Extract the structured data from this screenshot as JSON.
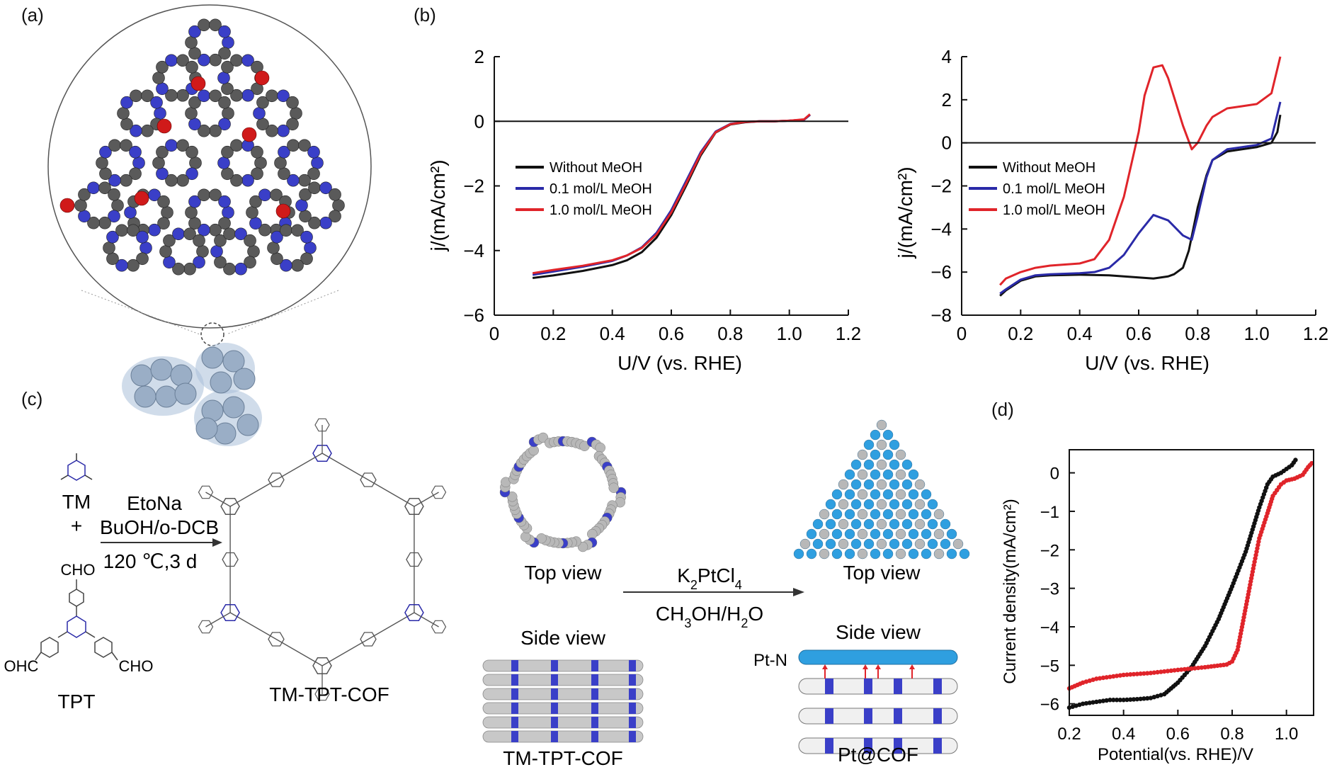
{
  "labels": {
    "a": "(a)",
    "b": "(b)",
    "c": "(c)",
    "d": "(d)"
  },
  "colors": {
    "black": "#111111",
    "blue": "#2a2aa8",
    "red": "#e0242a",
    "atom_grey": "#5a5a5a",
    "atom_blue": "#3a3fc8",
    "atom_red": "#d01a1a",
    "pt_blue": "#2f9fe0",
    "cluster": "#a9c0d8"
  },
  "scheme_c": {
    "tm": "TM",
    "tpt": "TPT",
    "plus": "+",
    "reagent1": "EtoNa",
    "reagent2": "BuOH/o-DCB",
    "conditions": "120 ℃,3 d",
    "cho": "CHO",
    "ohc": "OHC",
    "product": "TM-TPT-COF",
    "top_view_left": "Top view",
    "side_view_left": "Side view",
    "label_left": "TM-TPT-COF",
    "pt_reagent": "K2PtCl4",
    "pt_solvent": "CH3OH/H2O",
    "top_view_right": "Top view",
    "side_view_right": "Side view",
    "pt_n": "Pt-N",
    "label_right": "Pt@COF"
  },
  "chart_data": [
    {
      "type": "line",
      "xlabel": "U/V (vs. RHE)",
      "ylabel": "j/(mA/cm²)",
      "xlim": [
        0,
        1.2
      ],
      "ylim": [
        -6,
        2
      ],
      "xticks": [
        "0",
        "0.2",
        "0.4",
        "0.6",
        "0.8",
        "1.0",
        "1.2"
      ],
      "yticks": [
        "2",
        "0",
        "−2",
        "−4",
        "−6"
      ],
      "legend_position": "left",
      "series": [
        {
          "name": "Without MeOH",
          "color": "#111111",
          "x": [
            0.13,
            0.2,
            0.3,
            0.4,
            0.45,
            0.5,
            0.55,
            0.6,
            0.65,
            0.7,
            0.75,
            0.8,
            0.85,
            0.9,
            0.95,
            1.0,
            1.05,
            1.07
          ],
          "y": [
            -4.85,
            -4.77,
            -4.63,
            -4.45,
            -4.3,
            -4.05,
            -3.6,
            -2.9,
            -2.0,
            -1.05,
            -0.35,
            -0.1,
            -0.03,
            0.0,
            0.0,
            0.02,
            0.05,
            0.2
          ]
        },
        {
          "name": "0.1 mol/L MeOH",
          "color": "#2a2aa8",
          "x": [
            0.13,
            0.2,
            0.3,
            0.4,
            0.45,
            0.5,
            0.55,
            0.6,
            0.65,
            0.7,
            0.75,
            0.8,
            0.85,
            0.9,
            0.95,
            1.0,
            1.05,
            1.07
          ],
          "y": [
            -4.75,
            -4.65,
            -4.5,
            -4.32,
            -4.15,
            -3.9,
            -3.45,
            -2.75,
            -1.85,
            -0.95,
            -0.32,
            -0.08,
            -0.02,
            0.0,
            0.0,
            0.02,
            0.05,
            0.2
          ]
        },
        {
          "name": "1.0 mol/L MeOH",
          "color": "#e0242a",
          "x": [
            0.13,
            0.2,
            0.3,
            0.4,
            0.45,
            0.5,
            0.55,
            0.6,
            0.65,
            0.7,
            0.75,
            0.8,
            0.85,
            0.9,
            0.95,
            1.0,
            1.05,
            1.07
          ],
          "y": [
            -4.7,
            -4.6,
            -4.47,
            -4.3,
            -4.15,
            -3.92,
            -3.5,
            -2.82,
            -1.93,
            -1.0,
            -0.34,
            -0.09,
            -0.02,
            0.0,
            0.0,
            0.02,
            0.06,
            0.22
          ]
        }
      ]
    },
    {
      "type": "line",
      "xlabel": "U/V (vs. RHE)",
      "ylabel": "j/(mA/cm²)",
      "xlim": [
        0,
        1.2
      ],
      "ylim": [
        -8,
        4
      ],
      "xticks": [
        "0",
        "0.2",
        "0.4",
        "0.6",
        "0.8",
        "1.0",
        "1.2"
      ],
      "yticks": [
        "4",
        "2",
        "0",
        "−2",
        "−4",
        "−6",
        "−8"
      ],
      "legend_position": "left",
      "series": [
        {
          "name": "Without MeOH",
          "color": "#111111",
          "x": [
            0.13,
            0.15,
            0.2,
            0.25,
            0.3,
            0.4,
            0.5,
            0.6,
            0.65,
            0.7,
            0.72,
            0.75,
            0.77,
            0.8,
            0.83,
            0.85,
            0.9,
            0.95,
            1.0,
            1.05,
            1.07,
            1.08
          ],
          "y": [
            -7.1,
            -6.85,
            -6.4,
            -6.2,
            -6.15,
            -6.12,
            -6.15,
            -6.25,
            -6.3,
            -6.2,
            -6.1,
            -5.8,
            -5.0,
            -3.0,
            -1.5,
            -0.8,
            -0.4,
            -0.3,
            -0.2,
            0.0,
            0.5,
            1.3
          ]
        },
        {
          "name": "0.1 mol/L MeOH",
          "color": "#2a2aa8",
          "x": [
            0.13,
            0.15,
            0.2,
            0.25,
            0.3,
            0.4,
            0.45,
            0.5,
            0.55,
            0.6,
            0.65,
            0.7,
            0.75,
            0.78,
            0.8,
            0.83,
            0.85,
            0.9,
            0.95,
            1.0,
            1.05,
            1.08
          ],
          "y": [
            -7.0,
            -6.8,
            -6.35,
            -6.15,
            -6.1,
            -6.05,
            -6.0,
            -5.8,
            -5.2,
            -4.2,
            -3.35,
            -3.6,
            -4.3,
            -4.5,
            -3.4,
            -1.6,
            -0.8,
            -0.3,
            -0.2,
            -0.1,
            0.2,
            1.9
          ]
        },
        {
          "name": "1.0 mol/L MeOH",
          "color": "#e0242a",
          "x": [
            0.13,
            0.15,
            0.2,
            0.25,
            0.3,
            0.4,
            0.45,
            0.5,
            0.55,
            0.6,
            0.62,
            0.65,
            0.68,
            0.7,
            0.75,
            0.78,
            0.8,
            0.83,
            0.85,
            0.9,
            0.95,
            1.0,
            1.05,
            1.08
          ],
          "y": [
            -6.6,
            -6.3,
            -6.0,
            -5.8,
            -5.7,
            -5.6,
            -5.4,
            -4.5,
            -2.5,
            0.5,
            2.2,
            3.5,
            3.6,
            3.0,
            0.8,
            -0.3,
            0.0,
            0.8,
            1.2,
            1.6,
            1.7,
            1.8,
            2.3,
            4.0
          ]
        }
      ]
    },
    {
      "type": "scatter",
      "xlabel": "Potential(vs. RHE)/V",
      "ylabel": "Current density(mA/cm²)",
      "xlim": [
        0.2,
        1.1
      ],
      "ylim": [
        -6.3,
        0.6
      ],
      "xticks": [
        "0.2",
        "0.4",
        "0.6",
        "0.8",
        "1.0"
      ],
      "yticks": [
        "0",
        "−1",
        "−2",
        "−3",
        "−4",
        "−5",
        "−6"
      ],
      "series": [
        {
          "color": "#111111",
          "x": [
            0.2,
            0.25,
            0.3,
            0.35,
            0.4,
            0.45,
            0.5,
            0.55,
            0.6,
            0.65,
            0.7,
            0.75,
            0.8,
            0.85,
            0.9,
            0.93,
            0.95,
            0.98,
            1.0,
            1.02,
            1.04
          ],
          "y": [
            -6.1,
            -6.0,
            -5.95,
            -5.9,
            -5.9,
            -5.88,
            -5.85,
            -5.75,
            -5.45,
            -5.05,
            -4.5,
            -3.8,
            -2.95,
            -2.05,
            -0.9,
            -0.3,
            -0.1,
            0.0,
            0.1,
            0.2,
            0.4
          ]
        },
        {
          "color": "#e0242a",
          "x": [
            0.2,
            0.25,
            0.3,
            0.35,
            0.4,
            0.5,
            0.6,
            0.7,
            0.78,
            0.8,
            0.82,
            0.85,
            0.88,
            0.9,
            0.93,
            0.95,
            0.98,
            1.0,
            1.03,
            1.06,
            1.08,
            1.1
          ],
          "y": [
            -5.6,
            -5.45,
            -5.35,
            -5.3,
            -5.25,
            -5.2,
            -5.12,
            -5.05,
            -4.98,
            -4.9,
            -4.6,
            -3.5,
            -2.4,
            -1.7,
            -1.05,
            -0.6,
            -0.3,
            -0.2,
            -0.15,
            -0.05,
            0.15,
            0.3
          ]
        }
      ]
    }
  ]
}
